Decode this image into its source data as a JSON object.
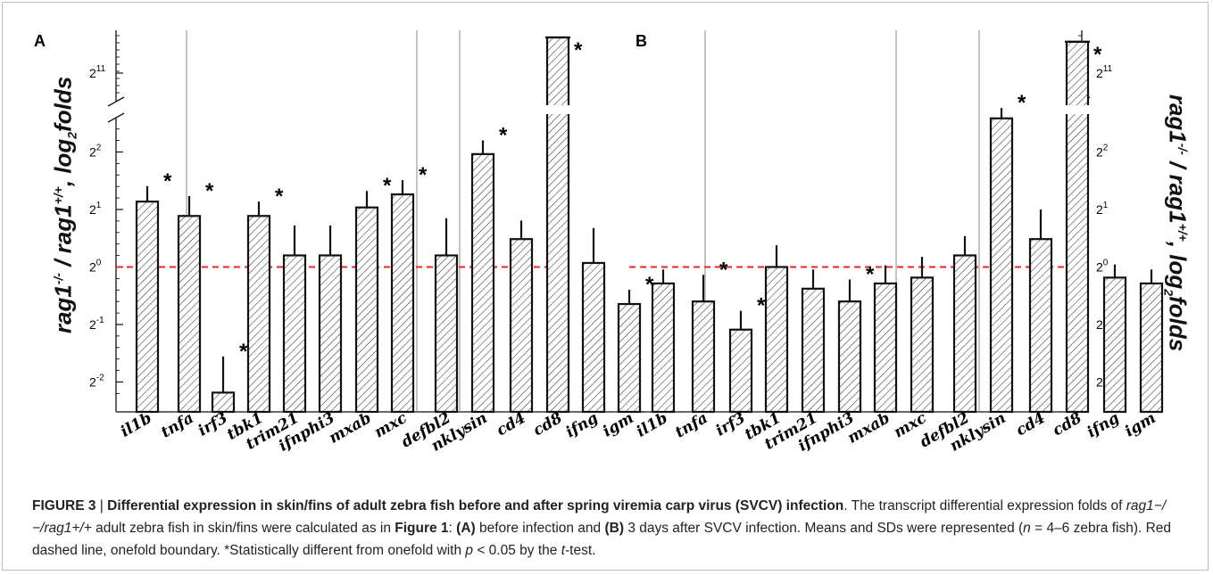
{
  "chart_data": [
    {
      "type": "bar",
      "panel_label": "A",
      "y_scale": "log2",
      "y_break": true,
      "y_ticks": [
        "2^-2",
        "2^-1",
        "2^0",
        "2^1",
        "2^2",
        "2^11"
      ],
      "reference_line": {
        "value": 1,
        "style": "red dashed",
        "color": "#e8262b"
      },
      "groups": [
        [
          "il1b",
          "tnfa"
        ],
        [
          "irf3",
          "tbk1",
          "trim21",
          "ifnphi3",
          "mxab",
          "mxc"
        ],
        [
          "defbl2",
          "nklysin"
        ],
        [
          "cd4",
          "cd8",
          "ifng",
          "igm"
        ]
      ],
      "categories": [
        "il1b",
        "tnfa",
        "irf3",
        "tbk1",
        "trim21",
        "ifnphi3",
        "mxab",
        "mxc",
        "defbl2",
        "nklysin",
        "cd4",
        "cd8",
        "ifng",
        "igm"
      ],
      "values": [
        2.2,
        1.85,
        0.22,
        1.85,
        1.15,
        1.15,
        2.05,
        2.4,
        1.15,
        3.9,
        1.4,
        3500,
        1.05,
        0.64
      ],
      "errors": [
        0.45,
        0.5,
        0.12,
        0.35,
        0.5,
        0.5,
        0.45,
        0.45,
        0.65,
        0.7,
        0.35,
        0,
        0.55,
        0.12
      ],
      "significant": [
        true,
        true,
        true,
        true,
        false,
        false,
        true,
        true,
        false,
        true,
        false,
        true,
        false,
        true
      ]
    },
    {
      "type": "bar",
      "panel_label": "B",
      "y_scale": "log2",
      "y_break": true,
      "y_ticks": [
        "2^-2",
        "2^-1",
        "2^0",
        "2^1",
        "2^2",
        "2^11"
      ],
      "reference_line": {
        "value": 1,
        "style": "red dashed",
        "color": "#e8262b"
      },
      "groups": [
        [
          "il1b",
          "tnfa"
        ],
        [
          "irf3",
          "tbk1",
          "trim21",
          "ifnphi3",
          "mxab",
          "mxc"
        ],
        [
          "defbl2",
          "nklysin"
        ],
        [
          "cd4",
          "cd8",
          "ifng",
          "igm"
        ]
      ],
      "categories": [
        "il1b",
        "tnfa",
        "irf3",
        "tbk1",
        "trim21",
        "ifnphi3",
        "mxab",
        "mxc",
        "defbl2",
        "nklysin",
        "cd4",
        "cd8",
        "ifng",
        "igm"
      ],
      "values": [
        0.82,
        0.66,
        0.47,
        1.0,
        0.77,
        0.66,
        0.82,
        0.88,
        1.15,
        6.0,
        1.4,
        2900,
        0.88,
        0.82
      ],
      "errors": [
        0.15,
        0.25,
        0.12,
        0.3,
        0.2,
        0.2,
        0.2,
        0.25,
        0.3,
        0.8,
        0.6,
        0,
        0.15,
        0.15
      ],
      "significant": [
        false,
        true,
        true,
        false,
        false,
        true,
        false,
        false,
        false,
        true,
        false,
        true,
        false,
        false
      ]
    }
  ],
  "significance_marker": "*",
  "y_axis_label": {
    "rag1": "rag1",
    "ko_sup": "-/-",
    "slash": " / ",
    "wt_sup": "+/+",
    "suffix": ", log",
    "base": "2",
    "unit": "folds"
  },
  "caption": {
    "figure_label": "FIGURE 3",
    "separator": " | ",
    "title": "Differential expression in skin/fins of adult zebra fish before and after spring viremia carp virus (SVCV) infection",
    "t1": ". The transcript differential expression folds of ",
    "ratio": "rag1−/−/rag1+/+",
    "t2": " adult zebra fish in skin/fins were calculated as in ",
    "fig_ref": "Figure 1",
    "t3": ": ",
    "a_label": "(A)",
    "t4": " before infection and ",
    "b_label": "(B)",
    "t5": " 3 days after SVCV infection. Means and SDs were represented (",
    "n_var": "n",
    "t6": " = 4–6 zebra fish). Red dashed line, onefold boundary. *Statistically different from onefold with ",
    "p_var": "p",
    "t7": " < 0.05 by the ",
    "t_var": "t",
    "t8": "-test."
  }
}
